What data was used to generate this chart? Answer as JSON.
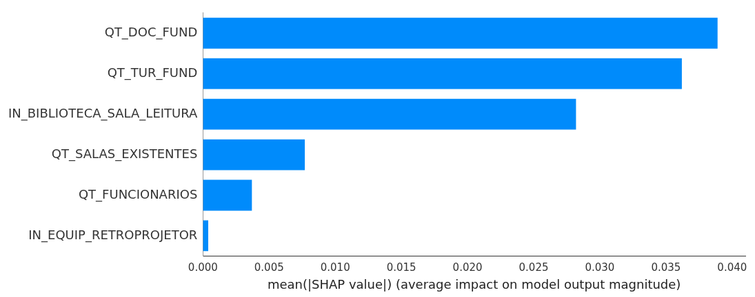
{
  "chart_data": {
    "type": "bar",
    "orientation": "horizontal",
    "xlabel": "mean(|SHAP value|) (average impact on model output magnitude)",
    "categories": [
      "QT_DOC_FUND",
      "QT_TUR_FUND",
      "IN_BIBLIOTECA_SALA_LEITURA",
      "QT_SALAS_EXISTENTES",
      "QT_FUNCIONARIOS",
      "IN_EQUIP_RETROPROJETOR"
    ],
    "values": [
      0.0389,
      0.0362,
      0.0282,
      0.0077,
      0.0037,
      0.0004
    ],
    "color": "#008bfb",
    "xlim": [
      0,
      0.041
    ],
    "xticks": [
      {
        "value": 0,
        "label": "0.000"
      },
      {
        "value": 0.005,
        "label": "0.005"
      },
      {
        "value": 0.01,
        "label": "0.010"
      },
      {
        "value": 0.015,
        "label": "0.015"
      },
      {
        "value": 0.02,
        "label": "0.020"
      },
      {
        "value": 0.025,
        "label": "0.025"
      },
      {
        "value": 0.03,
        "label": "0.030"
      },
      {
        "value": 0.035,
        "label": "0.035"
      },
      {
        "value": 0.04,
        "label": "0.040"
      }
    ],
    "grid": false,
    "legend": false
  }
}
